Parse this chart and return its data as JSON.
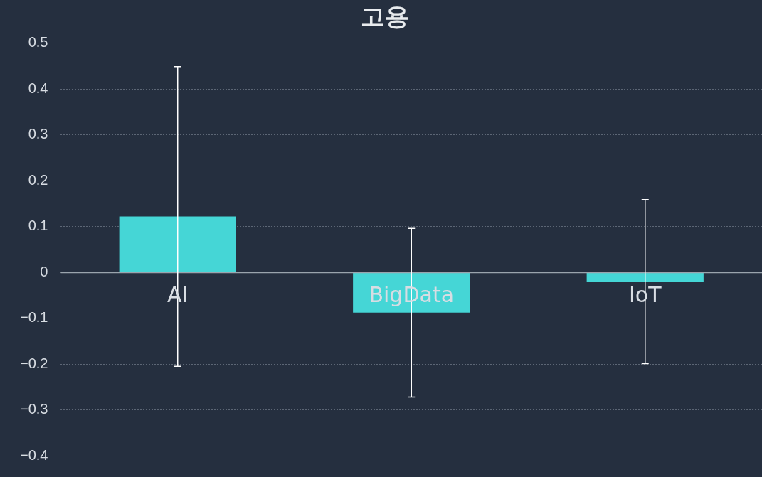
{
  "chart_data": {
    "type": "bar",
    "title": "고용",
    "categories": [
      "AI",
      "BigData",
      "IoT"
    ],
    "values": [
      0.122,
      -0.088,
      -0.02
    ],
    "errors": [
      [
        -0.205,
        0.449
      ],
      [
        -0.272,
        0.096
      ],
      [
        -0.199,
        0.159
      ]
    ],
    "color": "#45d6d6",
    "ylim": [
      -0.4,
      0.5
    ],
    "yticks": [
      {
        "value": -0.4,
        "label": "−0.4"
      },
      {
        "value": -0.3,
        "label": "−0.3"
      },
      {
        "value": -0.2,
        "label": "−0.2"
      },
      {
        "value": -0.1,
        "label": "−0.1"
      },
      0,
      0.1,
      0.2,
      0.3,
      0.4,
      0.5
    ],
    "grid": "y",
    "legend": false
  }
}
